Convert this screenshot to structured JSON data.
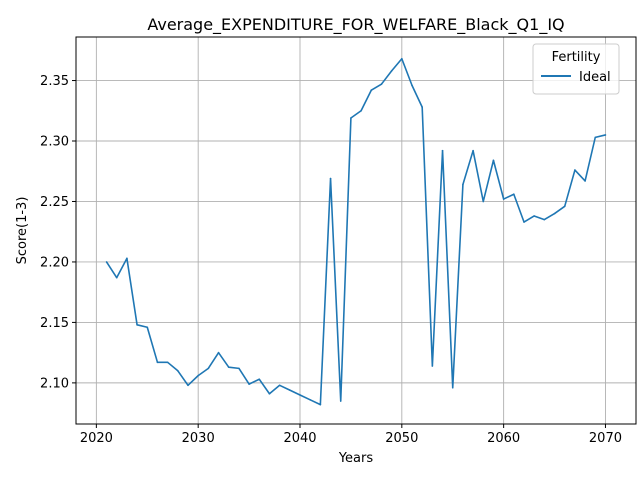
{
  "chart_data": {
    "type": "line",
    "title": "Average_EXPENDITURE_FOR_WELFARE_Black_Q1_IQ",
    "xlabel": "Years",
    "ylabel": "Score(1-3)",
    "xlim": [
      2018,
      2073
    ],
    "ylim": [
      2.066,
      2.386
    ],
    "xticks": [
      2020,
      2030,
      2040,
      2050,
      2060,
      2070
    ],
    "yticks": [
      2.1,
      2.15,
      2.2,
      2.25,
      2.3,
      2.35
    ],
    "grid": true,
    "legend": {
      "title": "Fertility",
      "position": "top-right"
    },
    "series": [
      {
        "name": "Ideal",
        "color": "#1f77b4",
        "x": [
          2021,
          2022,
          2023,
          2024,
          2025,
          2026,
          2027,
          2028,
          2029,
          2030,
          2031,
          2032,
          2033,
          2034,
          2035,
          2036,
          2037,
          2038,
          2039,
          2040,
          2041,
          2042,
          2043,
          2044,
          2045,
          2046,
          2047,
          2048,
          2049,
          2050,
          2051,
          2052,
          2053,
          2054,
          2055,
          2056,
          2057,
          2058,
          2059,
          2060,
          2061,
          2062,
          2063,
          2064,
          2065,
          2066,
          2067,
          2068,
          2069,
          2070
        ],
        "values": [
          2.2,
          2.187,
          2.203,
          2.148,
          2.146,
          2.117,
          2.117,
          2.11,
          2.098,
          2.106,
          2.112,
          2.125,
          2.113,
          2.112,
          2.099,
          2.103,
          2.091,
          2.098,
          2.094,
          2.09,
          2.086,
          2.082,
          2.269,
          2.085,
          2.319,
          2.325,
          2.342,
          2.347,
          2.358,
          2.368,
          2.346,
          2.328,
          2.114,
          2.292,
          2.096,
          2.264,
          2.292,
          2.25,
          2.284,
          2.252,
          2.256,
          2.233,
          2.238,
          2.235,
          2.24,
          2.246,
          2.276,
          2.267,
          2.303,
          2.305
        ]
      }
    ]
  }
}
